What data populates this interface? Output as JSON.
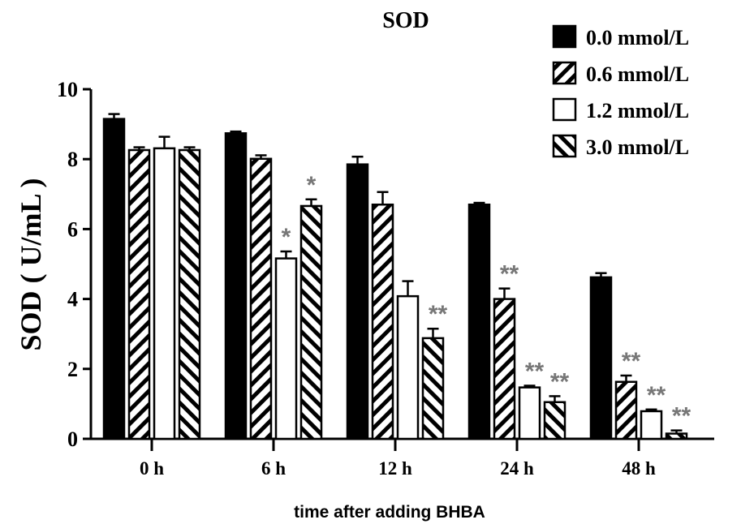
{
  "chart_data": {
    "type": "bar",
    "title": "SOD",
    "xlabel": "time after adding BHBA",
    "ylabel": "SOD ( U/mL )",
    "ylim": [
      0,
      10
    ],
    "yticks": [
      0,
      2,
      4,
      6,
      8,
      10
    ],
    "categories": [
      "0 h",
      "6 h",
      "12 h",
      "24 h",
      "48 h"
    ],
    "legend_position": "top-right",
    "grid": false,
    "series": [
      {
        "name": "0.0 mmol/L",
        "fill": "solid-black",
        "values": [
          9.15,
          8.74,
          7.85,
          6.7,
          4.62
        ],
        "errors": [
          0.14,
          0.05,
          0.22,
          0.05,
          0.12
        ],
        "significance": [
          "",
          "",
          "",
          "",
          ""
        ]
      },
      {
        "name": "0.6 mmol/L",
        "fill": "back-diagonal-hatch",
        "values": [
          8.26,
          8.01,
          6.7,
          4.0,
          1.63
        ],
        "errors": [
          0.08,
          0.1,
          0.36,
          0.3,
          0.18
        ],
        "significance": [
          "",
          "",
          "",
          "**",
          "**"
        ]
      },
      {
        "name": "1.2 mmol/L",
        "fill": "white",
        "values": [
          8.31,
          5.16,
          4.08,
          1.47,
          0.79
        ],
        "errors": [
          0.33,
          0.2,
          0.43,
          0.05,
          0.05
        ],
        "significance": [
          "",
          "*",
          "",
          "**",
          "**"
        ]
      },
      {
        "name": "3.0 mmol/L",
        "fill": "forward-diagonal-hatch",
        "values": [
          8.26,
          6.66,
          2.88,
          1.05,
          0.15
        ],
        "errors": [
          0.08,
          0.19,
          0.27,
          0.17,
          0.09
        ],
        "significance": [
          "",
          "*",
          "**",
          "**",
          "**"
        ]
      }
    ],
    "colors": {
      "bars": "#000000",
      "significance": "#777777"
    }
  }
}
